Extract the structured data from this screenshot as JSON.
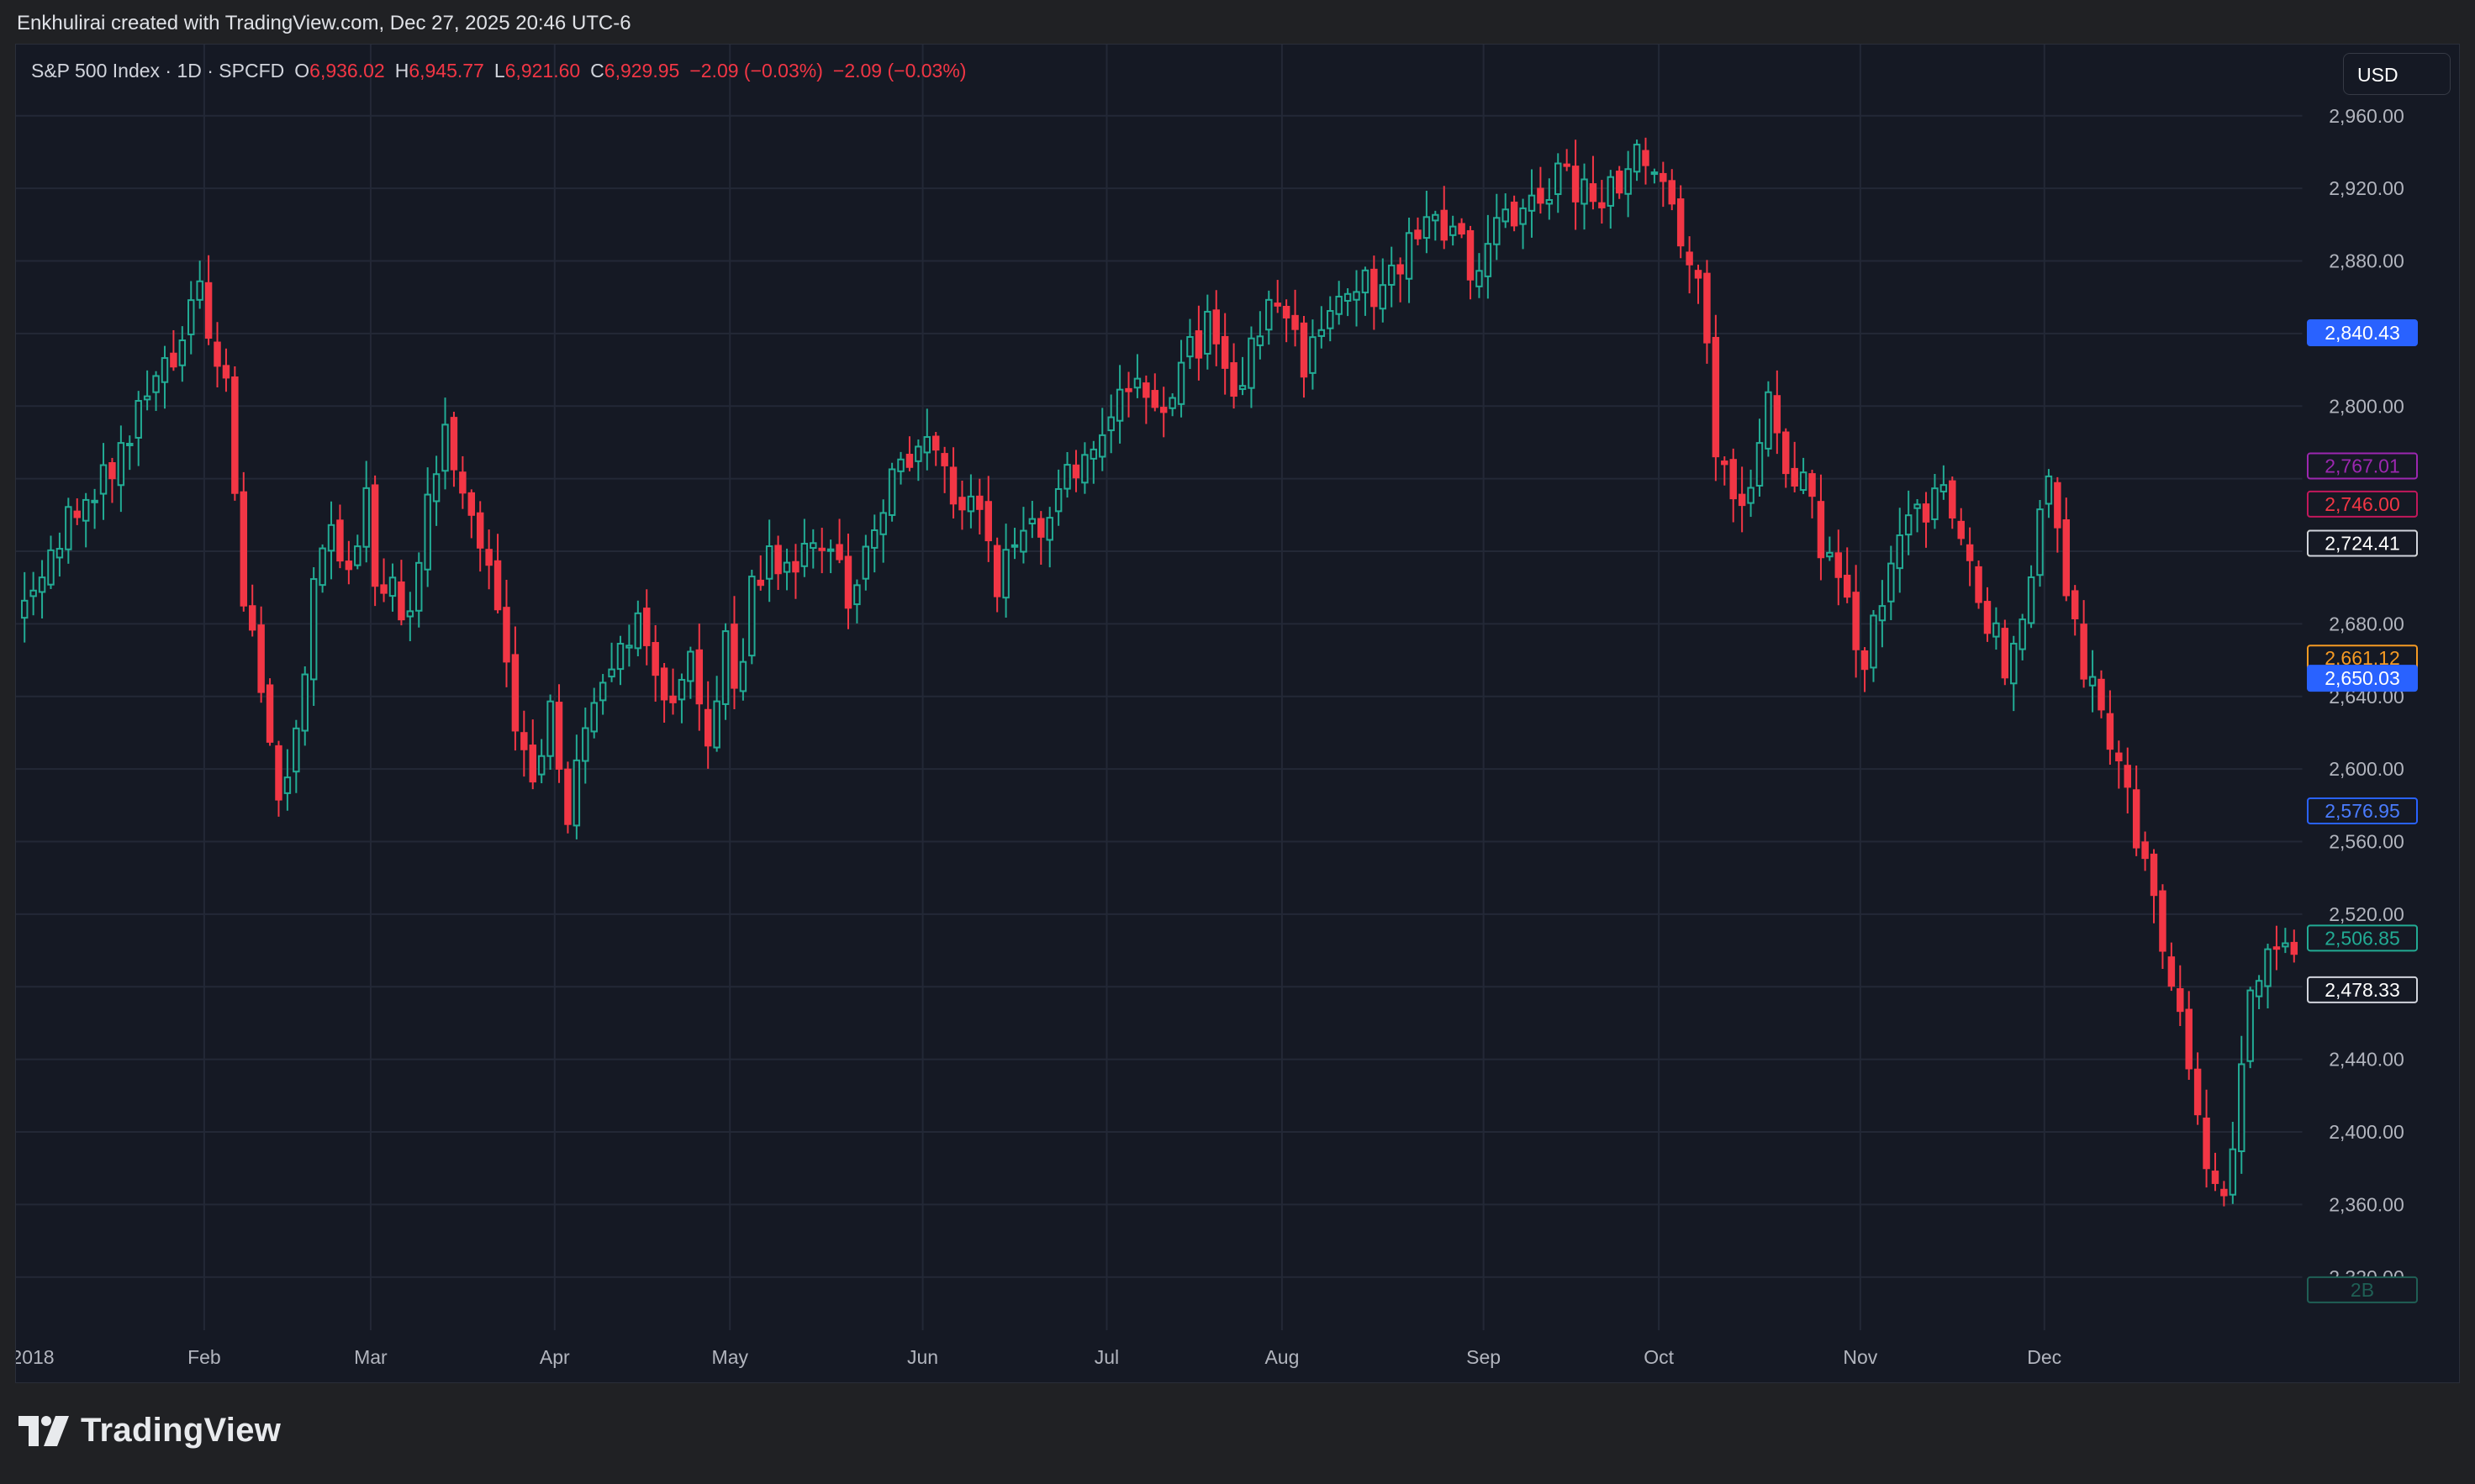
{
  "caption": "Enkhulirai created with TradingView.com, Dec 27, 2025 20:46 UTC-6",
  "legend": {
    "symbol": "S&P 500 Index · 1D · SPCFD",
    "open_label": "O",
    "open": "6,936.02",
    "high_label": "H",
    "high": "6,945.77",
    "low_label": "L",
    "low": "6,921.60",
    "close_label": "C",
    "close": "6,929.95",
    "change1": "−2.09 (−0.03%)",
    "change2": "−2.09 (−0.03%)"
  },
  "currency": "USD",
  "brand": "TradingView",
  "colors": {
    "up": "#22ab94",
    "down": "#f23645",
    "background": "#151924",
    "grid": "#232836"
  },
  "price_labels": [
    {
      "text": "2,840.43",
      "value": 2840.43,
      "style": "solid",
      "color": "#2962ff",
      "textColor": "#ffffff"
    },
    {
      "text": "2,767.01",
      "value": 2767.01,
      "style": "outline",
      "color": "#9c27b0",
      "textColor": "#9c27b0"
    },
    {
      "text": "2,746.00",
      "value": 2746.0,
      "style": "outline",
      "color": "#c2185b",
      "textColor": "#f23645"
    },
    {
      "text": "2,724.41",
      "value": 2724.41,
      "style": "solid",
      "color": "#fff176",
      "textColor": "#131722"
    },
    {
      "text": "2,724.41",
      "value": 2724.41,
      "style": "outline",
      "color": "#d1d4dc",
      "textColor": "#ffffff"
    },
    {
      "text": "2,661.12",
      "value": 2661.12,
      "style": "outline",
      "color": "#f59a23",
      "textColor": "#f59a23"
    },
    {
      "text": "2,650.03",
      "value": 2650.03,
      "style": "solid",
      "color": "#2962ff",
      "textColor": "#ffffff"
    },
    {
      "text": "2,576.95",
      "value": 2576.95,
      "style": "outline",
      "color": "#2962ff",
      "textColor": "#4a7cff"
    },
    {
      "text": "2,506.85",
      "value": 2506.85,
      "style": "outline",
      "color": "#22ab94",
      "textColor": "#22ab94"
    },
    {
      "text": "2,478.33",
      "value": 2478.33,
      "style": "outline",
      "color": "#d1d4dc",
      "textColor": "#ffffff"
    },
    {
      "text": "2B",
      "value": 2313,
      "style": "outline",
      "color": "#1f5f55",
      "textColor": "#1f5f55"
    }
  ],
  "chart_data": {
    "type": "candlestick",
    "symbol": "S&P 500 Index",
    "interval": "1D",
    "ylim": [
      2300,
      2990
    ],
    "y_ticks": [
      2320,
      2360,
      2400,
      2440,
      2480,
      2520,
      2560,
      2600,
      2640,
      2680,
      2720,
      2760,
      2800,
      2840,
      2880,
      2920,
      2960
    ],
    "y_tick_labels": [
      "2,320.00",
      "2,360.00",
      "2,400.00",
      "2,440.00",
      "",
      "2,520.00",
      "2,560.00",
      "2,600.00",
      "2,640.00",
      "2,680.00",
      "",
      "",
      "2,800.00",
      "",
      "2,880.00",
      "2,920.00",
      "2,960.00"
    ],
    "x_labels": [
      "2018",
      "Feb",
      "Mar",
      "Apr",
      "May",
      "Jun",
      "Jul",
      "Aug",
      "Sep",
      "Oct",
      "Nov",
      "Dec"
    ],
    "month_start_index": [
      0,
      21,
      40,
      61,
      81,
      103,
      124,
      144,
      167,
      187,
      210,
      231
    ],
    "anchors": [
      [
        0,
        2690
      ],
      [
        4,
        2730
      ],
      [
        8,
        2750
      ],
      [
        12,
        2790
      ],
      [
        16,
        2820
      ],
      [
        18,
        2845
      ],
      [
        20,
        2860
      ],
      [
        21,
        2830
      ],
      [
        23,
        2815
      ],
      [
        25,
        2690
      ],
      [
        27,
        2650
      ],
      [
        29,
        2590
      ],
      [
        31,
        2620
      ],
      [
        33,
        2700
      ],
      [
        35,
        2730
      ],
      [
        37,
        2700
      ],
      [
        39,
        2750
      ],
      [
        40,
        2710
      ],
      [
        42,
        2700
      ],
      [
        44,
        2680
      ],
      [
        46,
        2750
      ],
      [
        48,
        2780
      ],
      [
        50,
        2745
      ],
      [
        52,
        2730
      ],
      [
        54,
        2690
      ],
      [
        56,
        2620
      ],
      [
        58,
        2590
      ],
      [
        60,
        2640
      ],
      [
        61,
        2610
      ],
      [
        62,
        2580
      ],
      [
        64,
        2630
      ],
      [
        66,
        2650
      ],
      [
        68,
        2660
      ],
      [
        70,
        2690
      ],
      [
        72,
        2660
      ],
      [
        74,
        2630
      ],
      [
        76,
        2660
      ],
      [
        78,
        2620
      ],
      [
        80,
        2670
      ],
      [
        81,
        2640
      ],
      [
        83,
        2700
      ],
      [
        85,
        2720
      ],
      [
        87,
        2715
      ],
      [
        90,
        2720
      ],
      [
        92,
        2730
      ],
      [
        94,
        2695
      ],
      [
        96,
        2720
      ],
      [
        98,
        2745
      ],
      [
        100,
        2770
      ],
      [
        102,
        2778
      ],
      [
        103,
        2775
      ],
      [
        105,
        2760
      ],
      [
        107,
        2745
      ],
      [
        109,
        2750
      ],
      [
        110,
        2720
      ],
      [
        111,
        2705
      ],
      [
        113,
        2715
      ],
      [
        115,
        2730
      ],
      [
        117,
        2740
      ],
      [
        119,
        2760
      ],
      [
        121,
        2780
      ],
      [
        124,
        2795
      ],
      [
        126,
        2805
      ],
      [
        128,
        2810
      ],
      [
        131,
        2800
      ],
      [
        133,
        2830
      ],
      [
        135,
        2845
      ],
      [
        137,
        2815
      ],
      [
        139,
        2810
      ],
      [
        141,
        2845
      ],
      [
        142,
        2856
      ],
      [
        144,
        2855
      ],
      [
        146,
        2825
      ],
      [
        148,
        2840
      ],
      [
        150,
        2855
      ],
      [
        152,
        2870
      ],
      [
        154,
        2860
      ],
      [
        157,
        2880
      ],
      [
        159,
        2902
      ],
      [
        161,
        2905
      ],
      [
        163,
        2890
      ],
      [
        165,
        2880
      ],
      [
        167,
        2890
      ],
      [
        169,
        2903
      ],
      [
        171,
        2910
      ],
      [
        173,
        2920
      ],
      [
        175,
        2928
      ],
      [
        178,
        2915
      ],
      [
        180,
        2918
      ],
      [
        182,
        2925
      ],
      [
        184,
        2935
      ],
      [
        186,
        2930
      ],
      [
        187,
        2918
      ],
      [
        189,
        2895
      ],
      [
        191,
        2880
      ],
      [
        193,
        2780
      ],
      [
        195,
        2740
      ],
      [
        197,
        2755
      ],
      [
        199,
        2800
      ],
      [
        201,
        2770
      ],
      [
        203,
        2760
      ],
      [
        205,
        2720
      ],
      [
        207,
        2700
      ],
      [
        209,
        2670
      ],
      [
        210,
        2660
      ],
      [
        212,
        2690
      ],
      [
        214,
        2720
      ],
      [
        216,
        2740
      ],
      [
        218,
        2750
      ],
      [
        220,
        2745
      ],
      [
        222,
        2720
      ],
      [
        224,
        2680
      ],
      [
        226,
        2660
      ],
      [
        228,
        2680
      ],
      [
        230,
        2740
      ],
      [
        231,
        2760
      ],
      [
        233,
        2700
      ],
      [
        235,
        2650
      ],
      [
        237,
        2640
      ],
      [
        239,
        2600
      ],
      [
        241,
        2560
      ],
      [
        243,
        2530
      ],
      [
        245,
        2490
      ],
      [
        247,
        2440
      ],
      [
        249,
        2380
      ],
      [
        251,
        2360
      ],
      [
        252,
        2400
      ],
      [
        254,
        2470
      ],
      [
        256,
        2490
      ],
      [
        258,
        2508
      ]
    ],
    "n_candles": 260,
    "last_close": 2506.85
  }
}
